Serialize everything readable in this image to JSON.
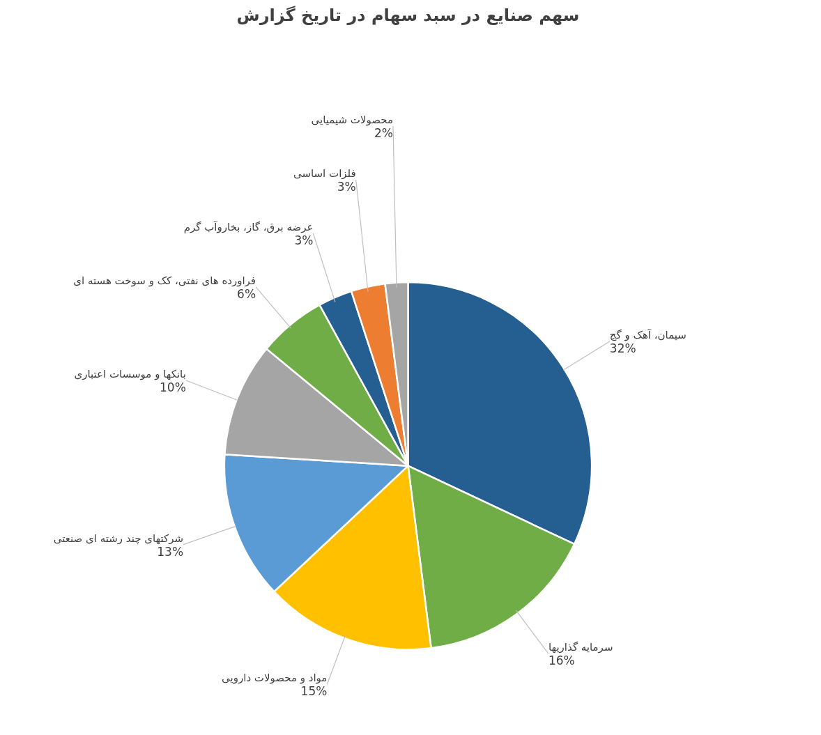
{
  "chart_data": {
    "type": "pie",
    "title": "سهم صنایع در سبد سهام در تاریخ گزارش",
    "categories": [
      "سیمان، آهک و گچ",
      "سرمایه گذاریها",
      "مواد و محصولات دارویی",
      "شرکتهای چند رشته ای صنعتی",
      "بانکها و موسسات اعتباری",
      "فراورده های نفتی، کک و سوخت هسته ای",
      "عرضه برق، گاز، بخاروآب گرم",
      "فلزات اساسی",
      "محصولات شیمیایی"
    ],
    "values": [
      32,
      16,
      15,
      13,
      10,
      6,
      3,
      3,
      2
    ],
    "colors": [
      "#255e91",
      "#70ad47",
      "#ffc000",
      "#5b9bd5",
      "#a5a5a5",
      "#70ad47",
      "#255e91",
      "#ed7d31",
      "#a5a5a5"
    ],
    "value_labels": [
      "32%",
      "16%",
      "15%",
      "13%",
      "10%",
      "6%",
      "3%",
      "3%",
      "2%"
    ]
  }
}
